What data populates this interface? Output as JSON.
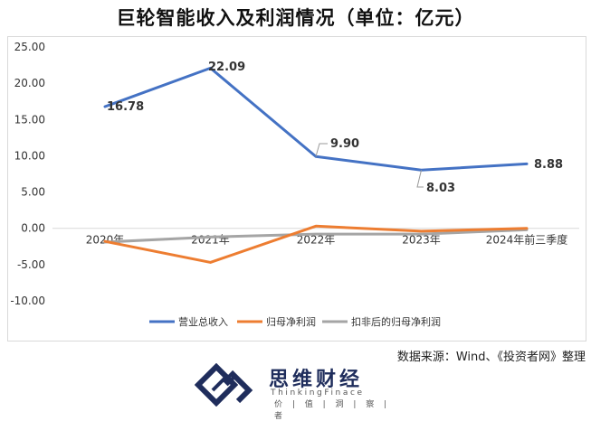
{
  "chart_data": {
    "type": "line",
    "title": "巨轮智能收入及利润情况（单位：亿元）",
    "categories": [
      "2020年",
      "2021年",
      "2022年",
      "2023年",
      "2024年前三季度"
    ],
    "ylim": [
      -10,
      25
    ],
    "yticks": [
      25,
      20,
      15,
      10,
      5,
      0,
      -5,
      -10
    ],
    "ytick_labels": [
      "25.00",
      "20.00",
      "15.00",
      "10.00",
      "5.00",
      "0.00",
      "-5.00",
      "-10.00"
    ],
    "grid": false,
    "legend_position": "bottom",
    "series": [
      {
        "name": "营业总收入",
        "color": "#4472c4",
        "values": [
          16.78,
          22.09,
          9.9,
          8.03,
          8.88
        ],
        "labels": [
          "16.78",
          "22.09",
          "9.90",
          "8.03",
          "8.88"
        ]
      },
      {
        "name": "归母净利润",
        "color": "#ed7d31",
        "values": [
          -1.8,
          -4.7,
          0.3,
          -0.4,
          0.0
        ]
      },
      {
        "name": "扣非后的归母净利润",
        "color": "#a5a5a5",
        "values": [
          -1.9,
          -1.2,
          -0.8,
          -0.8,
          -0.2
        ]
      }
    ]
  },
  "source_note": "数据来源：Wind、《投资者网》整理",
  "brand": {
    "name": "思维财经",
    "english": "ThinkingFinace",
    "slogan": "价 | 值 | 洞 | 察 | 者",
    "color": "#1f2d5c"
  }
}
